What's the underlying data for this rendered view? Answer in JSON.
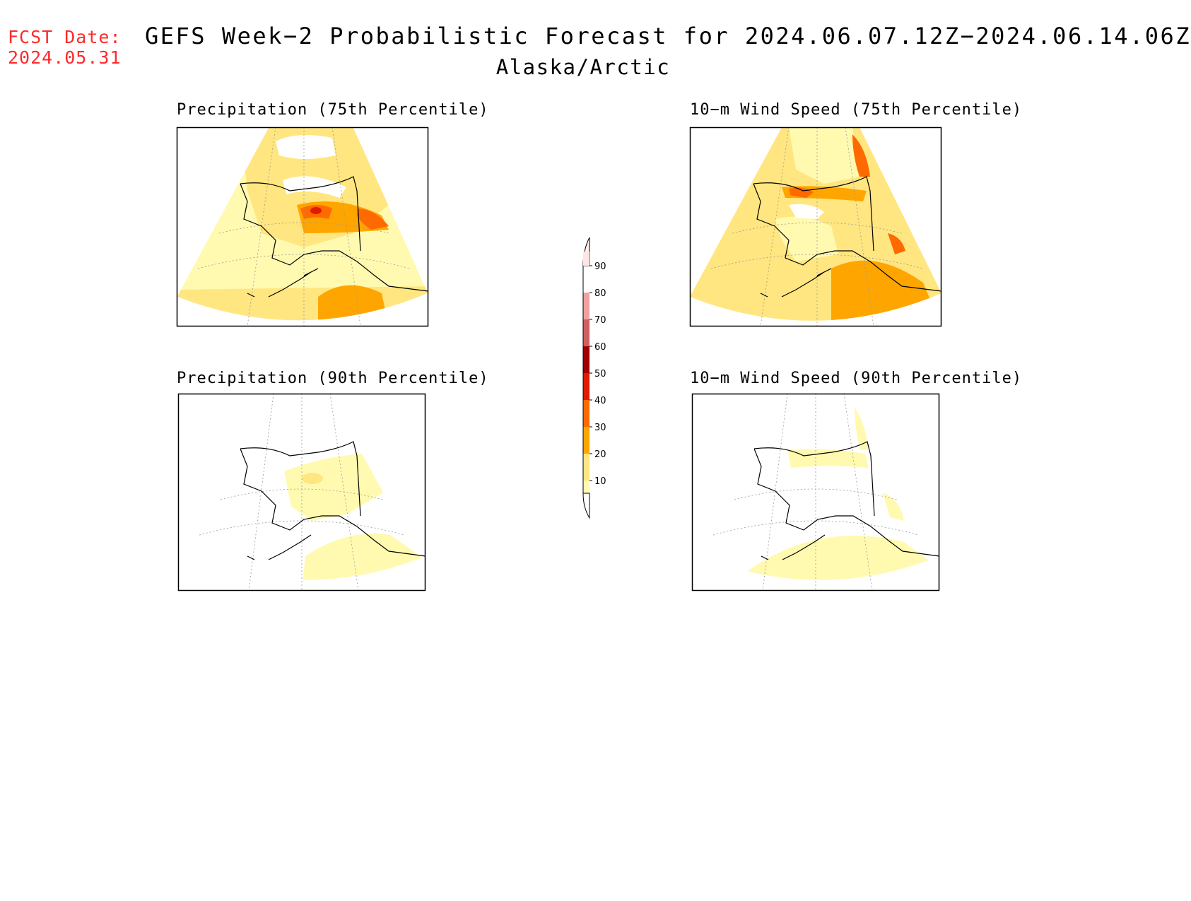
{
  "header": {
    "fcst_label": "FCST Date:",
    "fcst_date": "2024.05.31",
    "title": "GEFS Week−2 Probabilistic Forecast for 2024.06.07.12Z−2024.06.14.06Z",
    "region": "Alaska/Arctic"
  },
  "panels": [
    {
      "title": "Precipitation (75th Percentile)"
    },
    {
      "title": "10−m Wind Speed (75th Percentile)"
    },
    {
      "title": "Precipitation (90th Percentile)"
    },
    {
      "title": "10−m Wind Speed (90th Percentile)"
    }
  ],
  "legend": {
    "levels": [
      "10",
      "20",
      "30",
      "40",
      "50",
      "60",
      "70",
      "80",
      "90"
    ],
    "colors": [
      "#fffab0",
      "#ffe680",
      "#ffa500",
      "#ff6a00",
      "#e01b00",
      "#a00000",
      "#d06060",
      "#f0a0a0",
      "#ffe4e4"
    ]
  }
}
